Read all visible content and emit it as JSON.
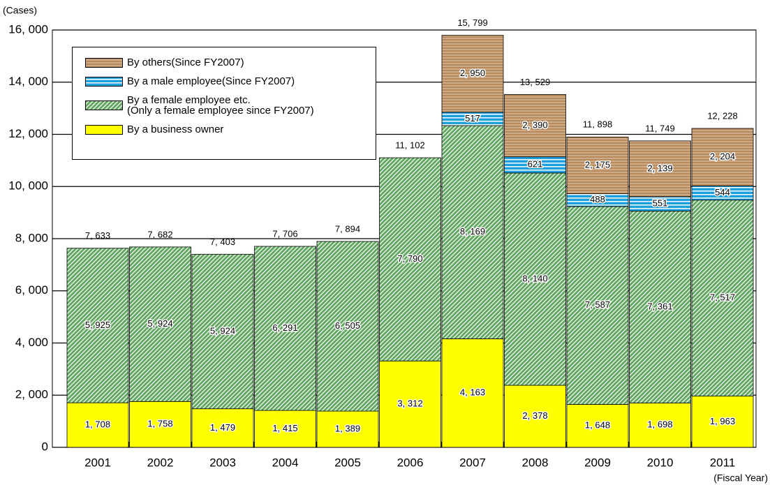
{
  "chart_data": {
    "type": "stacked_bar",
    "y_label": "(Cases)",
    "x_label": "(Fiscal Year)",
    "categories": [
      "2001",
      "2002",
      "2003",
      "2004",
      "2005",
      "2006",
      "2007",
      "2008",
      "2009",
      "2010",
      "2011"
    ],
    "series": [
      {
        "name": "By a business owner",
        "color": "#ffff00",
        "values": [
          1708,
          1758,
          1479,
          1415,
          1389,
          3312,
          4163,
          2378,
          1648,
          1698,
          1963
        ],
        "value_labels": [
          "1, 708",
          "1, 758",
          "1, 479",
          "1, 415",
          "1, 389",
          "3, 312",
          "4, 163",
          "2, 378",
          "1, 648",
          "1, 698",
          "1, 963"
        ]
      },
      {
        "name": "By a female employee etc.\n(Only a female employee since FY2007)",
        "color": "#62a862",
        "values": [
          5925,
          5924,
          5924,
          6291,
          6505,
          7790,
          8169,
          8140,
          7587,
          7361,
          7517
        ],
        "value_labels": [
          "5, 925",
          "5, 924",
          "5, 924",
          "6, 291",
          "6, 505",
          "7, 790",
          "8, 169",
          "8, 140",
          "7, 587",
          "7, 361",
          "7, 517"
        ]
      },
      {
        "name": "By a male employee(Since FY2007)",
        "color": "#1ea0dc",
        "values": [
          null,
          null,
          null,
          null,
          null,
          null,
          517,
          621,
          488,
          551,
          544
        ]
      },
      {
        "name": "By others(Since FY2007)",
        "color": "#b8895a",
        "values": [
          null,
          null,
          null,
          null,
          null,
          null,
          2950,
          2390,
          2175,
          2139,
          2204
        ],
        "value_labels": [
          null,
          null,
          null,
          null,
          null,
          null,
          "2, 950",
          "2, 390",
          "2, 175",
          "2, 139",
          "2, 204"
        ]
      }
    ],
    "totals": {
      "values": [
        7633,
        7682,
        7403,
        7706,
        7894,
        11102,
        15799,
        13529,
        11898,
        11749,
        12228
      ],
      "value_labels": [
        "7, 633",
        "7, 682",
        "7, 403",
        "7, 706",
        "7, 894",
        "11, 102",
        "15, 799",
        "13, 529",
        "11, 898",
        "11, 749",
        "12, 228"
      ]
    },
    "ylim": [
      0,
      16000
    ],
    "yticks": [
      0,
      {
        "value": 2000,
        "label": "2, 000"
      },
      {
        "value": 4000,
        "label": "4, 000"
      },
      {
        "value": 6000,
        "label": "6, 000"
      },
      {
        "value": 8000,
        "label": "8, 000"
      },
      {
        "value": 10000,
        "label": "10, 000"
      },
      {
        "value": 12000,
        "label": "12, 000"
      },
      {
        "value": 14000,
        "label": "14, 000"
      },
      {
        "value": 16000,
        "label": "16, 000"
      }
    ],
    "grid": true
  }
}
